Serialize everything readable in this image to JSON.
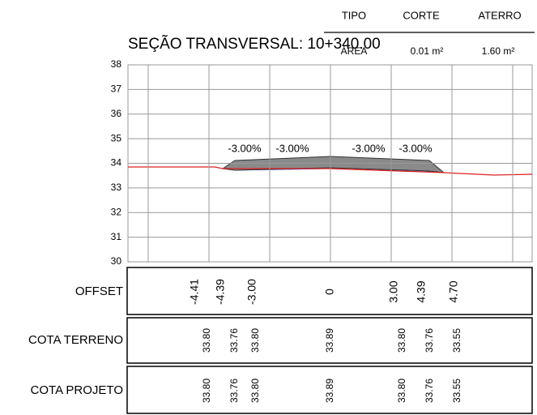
{
  "header": {
    "columns": [
      "TIPO",
      "CORTE",
      "ATERRO"
    ],
    "row": [
      "ÁREA",
      "0.01 m²",
      "1.60 m²"
    ]
  },
  "title": "SEÇÃO TRANSVERSAL: 10+340.00",
  "y_axis": [
    30,
    31,
    32,
    33,
    34,
    35,
    36,
    37,
    38
  ],
  "slopes": [
    "-3.00%",
    "-3.00%",
    "-3.00%",
    "-3.00%"
  ],
  "rows": [
    {
      "label": "OFFSET",
      "values": [
        "-4.41",
        "-4.39",
        "-3.00",
        "0",
        "3.00",
        "4.39",
        "4.70"
      ]
    },
    {
      "label": "COTA TERRENO",
      "values": [
        "33.80",
        "33.76",
        "33.80",
        "33.89",
        "33.80",
        "33.76",
        "33.55"
      ]
    },
    {
      "label": "COTA PROJETO",
      "values": [
        "33.80",
        "33.76",
        "33.80",
        "33.89",
        "33.80",
        "33.76",
        "33.55"
      ]
    }
  ]
}
